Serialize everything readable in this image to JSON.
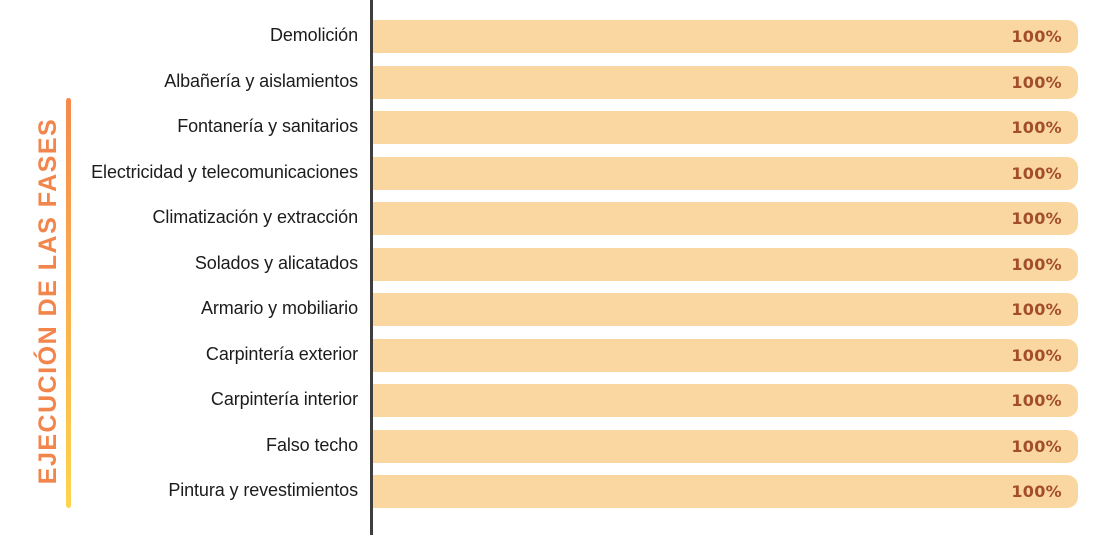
{
  "chart_data": {
    "type": "bar",
    "orientation": "horizontal",
    "title": "EJECUCIÓN DE LAS FASES",
    "categories": [
      "Demolición",
      "Albañería y aislamientos",
      "Fontanería y sanitarios",
      "Electricidad y telecomunicaciones",
      "Climatización y extracción",
      "Solados y alicatados",
      "Armario y mobiliario",
      "Carpintería exterior",
      "Carpintería interior",
      "Falso techo",
      "Pintura y revestimientos"
    ],
    "values": [
      100,
      100,
      100,
      100,
      100,
      100,
      100,
      100,
      100,
      100,
      100
    ],
    "value_labels": [
      "100%",
      "100%",
      "100%",
      "100%",
      "100%",
      "100%",
      "100%",
      "100%",
      "100%",
      "100%",
      "100%"
    ],
    "xlim": [
      0,
      100
    ],
    "grid": false,
    "legend": "none",
    "value_label_position": "inside-end"
  },
  "colors": {
    "bar_fill": "#FAD7A0",
    "value_text": "#A34E2A",
    "axis_line": "#3E3E3E",
    "category_text": "#1C1C1C",
    "title_text": "#F2854B",
    "accent_line_gradient_top": "#F6894C",
    "accent_line_gradient_bottom": "#FDD550",
    "background": "#FFFFFF"
  }
}
